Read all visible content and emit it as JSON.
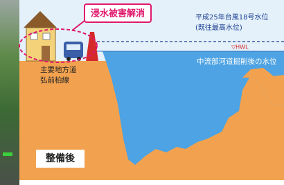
{
  "callout": "浸水被害解消",
  "flood_level": {
    "line1": "平成25年台風18号水位",
    "line2": "(既往最高水位)"
  },
  "hwl": "▽HWL",
  "water_level": "中流部河道掘削後の水位",
  "road": {
    "line1": "主要地方道",
    "line2": "弘前柏線"
  },
  "stage": "整備後"
}
